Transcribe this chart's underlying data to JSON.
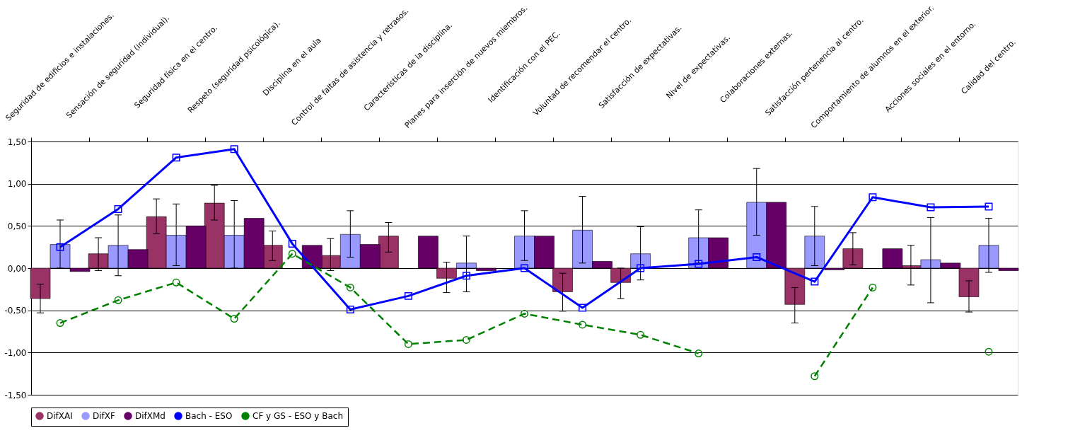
{
  "chart_data": {
    "type": "bar",
    "categories": [
      "Seguridad de edificios e instalaciones.",
      "Sensación de seguridad (individual).",
      "Seguridad física en el centro.",
      "Respeto (seguridad psicológica).",
      "Disciplina en el aula",
      "Control de faltas de asistencia y retrasos.",
      "Características de la disciplina.",
      "Planes para inserción de nuevos miembros.",
      "Identificación con el PEC.",
      "Voluntad de recomendar el centro.",
      "Satisfacción de expectativas.",
      "Nivel de expectativas.",
      "Colaboraciones externas.",
      "Satisfacción pertenencia al centro.",
      "Comportamiento de alumnos en el exterior.",
      "Acciones sociales en el entorno.",
      "Calidad del centro."
    ],
    "series": [
      {
        "name": "DifXAI",
        "color": "#993366",
        "values": [
          -0.36,
          0.17,
          0.61,
          0.77,
          0.27,
          0.15,
          0.38,
          -0.12,
          null,
          -0.28,
          -0.17,
          null,
          null,
          -0.43,
          0.23,
          0.03,
          -0.34
        ],
        "errors": [
          [
            -0.53,
            -0.19
          ],
          [
            -0.03,
            0.36
          ],
          [
            0.41,
            0.82
          ],
          [
            0.57,
            0.98
          ],
          [
            0.09,
            0.44
          ],
          [
            -0.03,
            0.35
          ],
          [
            0.19,
            0.54
          ],
          [
            -0.29,
            0.07
          ],
          null,
          [
            -0.51,
            -0.06
          ],
          [
            -0.36,
            0.0
          ],
          null,
          null,
          [
            -0.65,
            -0.23
          ],
          [
            0.04,
            0.42
          ],
          [
            -0.2,
            0.27
          ],
          [
            -0.52,
            -0.15
          ]
        ]
      },
      {
        "name": "DifXF",
        "color": "#9999ff",
        "values": [
          0.28,
          0.27,
          0.39,
          0.39,
          null,
          0.4,
          null,
          0.06,
          0.38,
          0.45,
          0.17,
          0.36,
          0.78,
          0.38,
          null,
          0.1,
          0.27
        ],
        "errors": [
          [
            0.0,
            0.57
          ],
          [
            -0.09,
            0.63
          ],
          [
            0.03,
            0.76
          ],
          [
            0.0,
            0.8
          ],
          null,
          [
            0.13,
            0.68
          ],
          null,
          [
            -0.28,
            0.38
          ],
          [
            0.09,
            0.68
          ],
          [
            0.06,
            0.85
          ],
          [
            -0.14,
            0.49
          ],
          [
            0.06,
            0.69
          ],
          [
            0.39,
            1.18
          ],
          [
            0.03,
            0.73
          ],
          null,
          [
            -0.41,
            0.6
          ],
          [
            -0.05,
            0.59
          ]
        ]
      },
      {
        "name": "DifXMd",
        "color": "#660066",
        "values": [
          -0.04,
          0.22,
          0.5,
          0.59,
          0.27,
          0.28,
          0.38,
          -0.03,
          0.38,
          0.08,
          null,
          0.36,
          0.78,
          -0.02,
          0.23,
          0.06,
          -0.03
        ]
      },
      {
        "name": "Bach - ESO",
        "type": "line",
        "color": "#0000ff",
        "marker": "square",
        "line_style": "solid",
        "values": [
          0.25,
          0.7,
          1.31,
          1.41,
          0.29,
          -0.49,
          -0.33,
          -0.09,
          0.0,
          -0.47,
          0.0,
          0.05,
          0.13,
          -0.16,
          0.84,
          0.72,
          0.73
        ]
      },
      {
        "name": "CF y GS - ESO y Bach",
        "type": "line",
        "color": "#008000",
        "marker": "circle",
        "line_style": "dashed",
        "values": [
          -0.65,
          -0.38,
          -0.17,
          -0.6,
          0.17,
          -0.23,
          -0.9,
          -0.85,
          -0.54,
          -0.67,
          -0.79,
          -1.01,
          null,
          -1.28,
          -0.23,
          null,
          -0.99
        ]
      }
    ],
    "ylim": [
      -1.5,
      1.5
    ],
    "yticks": [
      {
        "value": -1.5,
        "label": "-1,50"
      },
      {
        "value": -1.0,
        "label": "-1,00"
      },
      {
        "value": -0.5,
        "label": "-0,50"
      },
      {
        "value": 0,
        "label": "0,00"
      },
      {
        "value": 0.5,
        "label": "0,50"
      },
      {
        "value": 1.0,
        "label": "1,00"
      },
      {
        "value": 1.5,
        "label": "1,50"
      }
    ],
    "grid": "y",
    "legend": "bottom"
  }
}
